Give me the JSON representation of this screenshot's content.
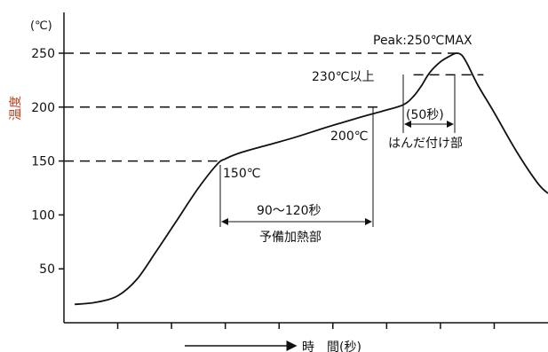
{
  "chart_data": {
    "type": "line",
    "ylabel": "温度",
    "ylabel_color": "#b0472a",
    "unit_label": "(℃)",
    "xlabel": "時　間(秒)",
    "y_ticks": [
      50,
      100,
      150,
      200,
      250
    ],
    "ylim": [
      0,
      275
    ],
    "xlim": [
      0,
      9
    ],
    "x_tick_count": 8,
    "grid": false,
    "series": [
      {
        "x": [
          0.2,
          0.6,
          1.0,
          1.35,
          1.7,
          2.1,
          2.5,
          2.85,
          3.0,
          3.3,
          3.8,
          4.3,
          4.8,
          5.4,
          5.9,
          6.3,
          6.5,
          6.65,
          6.8,
          7.0,
          7.2,
          7.3,
          7.4,
          7.5,
          7.7,
          8.0,
          8.4,
          8.8,
          9.0
        ],
        "y": [
          17,
          19,
          25,
          40,
          65,
          95,
          125,
          147,
          152,
          158,
          165,
          172,
          180,
          189,
          196,
          202,
          210,
          220,
          232,
          242,
          248,
          250,
          248,
          240,
          220,
          195,
          160,
          130,
          120
        ]
      }
    ],
    "reference_lines": [
      {
        "y": 150,
        "x_end": 2.85
      },
      {
        "y": 200,
        "x_end": 5.9
      },
      {
        "y": 250,
        "x_end": 7.3
      },
      {
        "y": 230,
        "x_start": 6.5,
        "x_end": 7.8
      }
    ],
    "annotations": {
      "peak": "Peak:250℃MAX",
      "solder_min": "230℃以上",
      "start_temp": "150℃",
      "end_temp": "200℃",
      "preheat_time": "90～120秒",
      "preheat_label": "予備加熱部",
      "solder_time": "(50秒)",
      "solder_label": "はんだ付け部"
    }
  }
}
